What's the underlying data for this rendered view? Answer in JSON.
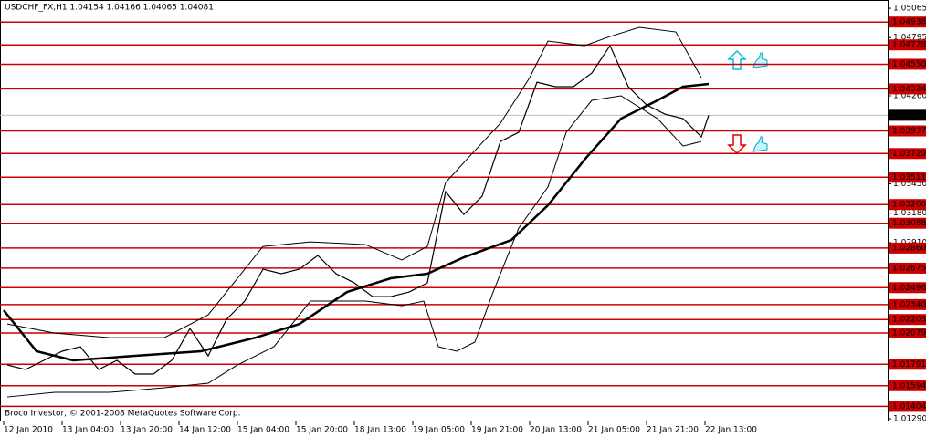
{
  "chart_data": {
    "type": "line",
    "title": "USDCHF_FX,H1  1.04154 1.04166 1.04065 1.04081",
    "footer": "Broco Investor, © 2001-2008 MetaQuotes Software Corp.",
    "xlim": [
      -1,
      242
    ],
    "ylim": [
      1.01265,
      1.05141
    ],
    "xticks": [
      {
        "value": 0,
        "label": "12 Jan 2010"
      },
      {
        "value": 16,
        "label": "13 Jan 04:00"
      },
      {
        "value": 32,
        "label": "13 Jan 20:00"
      },
      {
        "value": 48,
        "label": "14 Jan 12:00"
      },
      {
        "value": 64,
        "label": "15 Jan 04:00"
      },
      {
        "value": 80,
        "label": "15 Jan 20:00"
      },
      {
        "value": 96,
        "label": "18 Jan 13:00"
      },
      {
        "value": 112,
        "label": "19 Jan 05:00"
      },
      {
        "value": 128,
        "label": "19 Jan 21:00"
      },
      {
        "value": 144,
        "label": "20 Jan 13:00"
      },
      {
        "value": 160,
        "label": "21 Jan 05:00"
      },
      {
        "value": 176,
        "label": "21 Jan 21:00"
      },
      {
        "value": 192,
        "label": "22 Jan 13:00"
      }
    ],
    "yticks": [
      {
        "value": 1.05065,
        "label": "1.05065"
      },
      {
        "value": 1.04795,
        "label": "1.04795"
      },
      {
        "value": 1.0426,
        "label": "1.04260"
      },
      {
        "value": 1.0345,
        "label": "1.03450"
      },
      {
        "value": 1.0318,
        "label": "1.03180"
      },
      {
        "value": 1.0291,
        "label": "1.02910"
      },
      {
        "value": 1.0129,
        "label": "1.01290"
      }
    ],
    "levels_color": "#cc0000",
    "levels": [
      {
        "value": 1.04938,
        "label": "1.04938"
      },
      {
        "value": 1.04728,
        "label": "1.04728"
      },
      {
        "value": 1.0455,
        "label": "1.04550"
      },
      {
        "value": 1.04324,
        "label": "1.04324"
      },
      {
        "value": 1.03937,
        "label": "1.03937"
      },
      {
        "value": 1.03729,
        "label": "1.03729"
      },
      {
        "value": 1.03511,
        "label": "1.03511"
      },
      {
        "value": 1.0326,
        "label": "1.03260"
      },
      {
        "value": 1.03088,
        "label": "1.03088"
      },
      {
        "value": 1.0286,
        "label": "1.02860"
      },
      {
        "value": 1.02675,
        "label": "1.02675"
      },
      {
        "value": 1.02496,
        "label": "1.02496"
      },
      {
        "value": 1.0234,
        "label": "1.02340"
      },
      {
        "value": 1.02203,
        "label": "1.02203"
      },
      {
        "value": 1.02079,
        "label": "1.02079"
      },
      {
        "value": 1.01791,
        "label": "1.01791"
      },
      {
        "value": 1.01594,
        "label": "1.01594"
      },
      {
        "value": 1.01404,
        "label": "1.01404"
      }
    ],
    "last_price": {
      "value": 1.04081,
      "label": "1.04081"
    },
    "series": [
      {
        "name": "USDCHF_FX",
        "color": "#000000",
        "x": [
          1,
          6,
          11,
          16,
          21,
          26,
          31,
          36,
          41,
          46,
          51,
          56,
          61,
          66,
          71,
          76,
          81,
          86,
          91,
          96,
          101,
          106,
          111,
          116,
          121,
          126,
          131,
          136,
          141,
          146,
          151,
          156,
          161,
          166,
          171,
          176,
          181,
          186,
          191,
          193
        ],
        "values": [
          1.01785,
          1.01743,
          1.01827,
          1.01911,
          1.01953,
          1.01743,
          1.01827,
          1.01701,
          1.01701,
          1.01827,
          1.0212,
          1.01869,
          1.02204,
          1.02372,
          1.02666,
          1.02624,
          1.02666,
          1.02792,
          1.02624,
          1.0254,
          1.02414,
          1.02414,
          1.02456,
          1.0254,
          1.03379,
          1.03169,
          1.03337,
          1.0384,
          1.03924,
          1.04385,
          1.04344,
          1.04344,
          1.04469,
          1.04721,
          1.04344,
          1.04176,
          1.04092,
          1.0405,
          1.03882,
          1.04081
        ]
      },
      {
        "color": "#000000",
        "x": [
          0,
          9,
          19,
          36,
          54,
          69,
          81,
          94,
          106,
          116,
          126,
          139,
          149,
          159,
          169,
          179,
          186,
          193
        ],
        "values": [
          1.02288,
          1.01911,
          1.01827,
          1.01869,
          1.01911,
          1.02036,
          1.02162,
          1.02456,
          1.02582,
          1.02624,
          1.02775,
          1.02934,
          1.03253,
          1.03672,
          1.0405,
          1.04218,
          1.04344,
          1.04369
        ]
      },
      {
        "color": "#000000",
        "x": [
          1,
          14,
          29,
          44,
          56,
          71,
          84,
          99,
          109,
          116,
          121,
          129,
          136,
          144,
          149,
          159,
          166,
          174,
          184,
          191
        ],
        "values": [
          1.02162,
          1.02078,
          1.02036,
          1.02036,
          1.02246,
          1.02875,
          1.02917,
          1.02892,
          1.0275,
          1.02875,
          1.03463,
          1.03756,
          1.04008,
          1.04427,
          1.04763,
          1.04721,
          1.04805,
          1.04889,
          1.04847,
          1.04427
        ]
      },
      {
        "color": "#000000",
        "x": [
          1,
          14,
          29,
          44,
          56,
          64,
          74,
          84,
          99,
          109,
          115,
          119,
          124,
          129,
          134,
          141,
          149,
          154,
          161,
          169,
          179,
          186,
          191
        ],
        "values": [
          1.01491,
          1.01533,
          1.01533,
          1.01575,
          1.01617,
          1.01785,
          1.01953,
          1.02372,
          1.02372,
          1.0233,
          1.02372,
          1.01953,
          1.01911,
          1.01995,
          1.02456,
          1.03043,
          1.03421,
          1.03924,
          1.04218,
          1.0426,
          1.0405,
          1.03798,
          1.0384
        ]
      }
    ]
  }
}
